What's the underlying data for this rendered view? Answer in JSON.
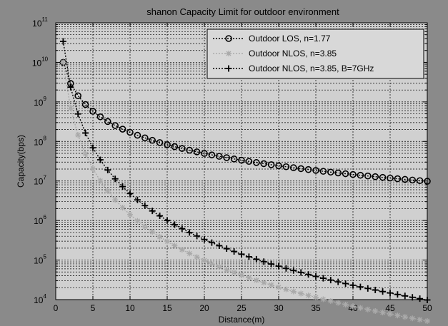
{
  "chart_data": {
    "type": "line",
    "title": "shanon Capacity Limit for outdoor environment",
    "xlabel": "Distance(m)",
    "ylabel": "Capacity(bps)",
    "x_scale": "linear",
    "y_scale": "log",
    "xlim": [
      0,
      50
    ],
    "ylim_exp": [
      4,
      11
    ],
    "xticks": [
      0,
      5,
      10,
      15,
      20,
      25,
      30,
      35,
      40,
      45,
      50
    ],
    "yticks": [
      {
        "base": "10",
        "exp": "4"
      },
      {
        "base": "10",
        "exp": "5"
      },
      {
        "base": "10",
        "exp": "6"
      },
      {
        "base": "10",
        "exp": "7"
      },
      {
        "base": "10",
        "exp": "8"
      },
      {
        "base": "10",
        "exp": "9"
      },
      {
        "base": "10",
        "exp": "10"
      },
      {
        "base": "10",
        "exp": "11"
      }
    ],
    "grid": true,
    "legend_position": "top-right",
    "series": [
      {
        "name": "Outdoor LOS, n=1.77",
        "marker": "circle",
        "color": "#000000",
        "model": {
          "c1": 10000000000,
          "exponent": 1.77
        },
        "x": [
          1,
          2,
          3,
          4,
          5,
          6,
          7,
          8,
          9,
          10,
          11,
          12,
          13,
          14,
          15,
          16,
          17,
          18,
          19,
          20,
          21,
          22,
          23,
          24,
          25,
          26,
          27,
          28,
          29,
          30,
          31,
          32,
          33,
          34,
          35,
          36,
          37,
          38,
          39,
          40,
          41,
          42,
          43,
          44,
          45,
          46,
          47,
          48,
          49,
          50
        ]
      },
      {
        "name": "Outdoor NLOS, n=3.85",
        "marker": "star",
        "color": "#aaaaaa",
        "model": {
          "c1": 10000000000,
          "exponent": 3.85
        },
        "x": [
          1,
          2,
          3,
          4,
          5,
          6,
          7,
          8,
          9,
          10,
          11,
          12,
          13,
          14,
          15,
          16,
          17,
          18,
          19,
          20,
          21,
          22,
          23,
          24,
          25,
          26,
          27,
          28,
          29,
          30,
          31,
          32,
          33,
          34,
          35,
          36,
          37,
          38,
          39,
          40,
          41,
          42,
          43,
          44,
          45,
          46,
          47,
          48,
          49,
          50
        ]
      },
      {
        "name": "Outdoor NLOS, n=3.85, B=7GHz",
        "marker": "plus",
        "color": "#000000",
        "model": {
          "c1": 34000000000,
          "exponent": 3.85
        },
        "x": [
          1,
          2,
          3,
          4,
          5,
          6,
          7,
          8,
          9,
          10,
          11,
          12,
          13,
          14,
          15,
          16,
          17,
          18,
          19,
          20,
          21,
          22,
          23,
          24,
          25,
          26,
          27,
          28,
          29,
          30,
          31,
          32,
          33,
          34,
          35,
          36,
          37,
          38,
          39,
          40,
          41,
          42,
          43,
          44,
          45,
          46,
          47,
          48,
          49,
          50
        ]
      }
    ]
  }
}
